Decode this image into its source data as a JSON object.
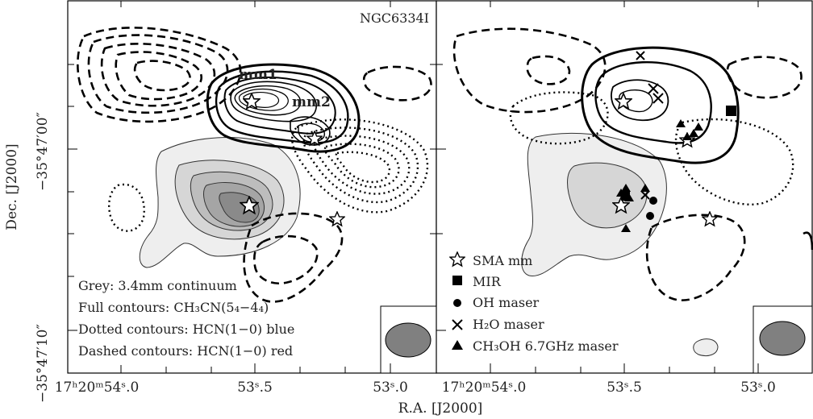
{
  "object_name": "NGC6334I",
  "axes": {
    "ylabel": "Dec. [J2000]",
    "xlabel": "R.A. [J2000]",
    "y_ticks": [
      "−35°47′00″",
      "−35°47′10″"
    ],
    "x_ticks_left": [
      "17ʰ20ᵐ54ˢ.0",
      "53ˢ.5",
      "53ˢ.0"
    ],
    "x_ticks_right": [
      "17ʰ20ᵐ54ˢ.0",
      "53ˢ.5",
      "53ˢ.0"
    ],
    "left_corner": "−35°47′10″"
  },
  "left_panel": {
    "source_labels": [
      "mm1",
      "mm2"
    ],
    "legend": [
      "Grey: 3.4mm continuum",
      "Full contours: CH₃CN(5₄−4₄)",
      "Dotted contours: HCN(1−0) blue",
      "Dashed contours: HCN(1−0) red"
    ]
  },
  "right_panel": {
    "legend": [
      {
        "symbol": "star-icon",
        "label": "SMA mm"
      },
      {
        "symbol": "square-icon",
        "label": "MIR"
      },
      {
        "symbol": "circle-icon",
        "label": "OH maser"
      },
      {
        "symbol": "cross-icon",
        "label": "H₂O maser"
      },
      {
        "symbol": "triangle-icon",
        "label": "CH₃OH 6.7GHz maser"
      }
    ]
  },
  "colors": {
    "grey_fill_light": "#eeeeee",
    "grey_fill_mid": "#bdbdbd",
    "grey_fill_dark": "#8a8a8a",
    "beam": "#808080"
  }
}
